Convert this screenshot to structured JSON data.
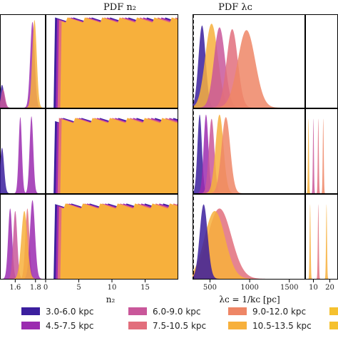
{
  "chart_data": {
    "type": "area",
    "title": "",
    "colors": {
      "3.0-6.0 kpc": "#3b1f9e",
      "4.5-7.5 kpc": "#9b2bb0",
      "6.0-9.0 kpc": "#c9579a",
      "7.5-10.5 kpc": "#e26e7c",
      "9.0-12.0 kpc": "#ee8666",
      "10.5-13.5 kpc": "#f7b03c",
      "12.0-15.0 kpc": "#f5c12f"
    },
    "legend": {
      "placement": "bottom",
      "entries": [
        "3.0-6.0 kpc",
        "4.5-7.5 kpc",
        "6.0-9.0 kpc",
        "7.5-10.5 kpc",
        "9.0-12.0 kpc",
        "10.5-13.5 kpc"
      ]
    },
    "panels": [
      {
        "id": "col1",
        "title": "",
        "xlabel": "",
        "xlim": [
          1.45,
          1.9
        ],
        "xticks": [
          1.6,
          1.8
        ],
        "xticklabels": [
          "1.6",
          "1.8"
        ],
        "rows": [
          {
            "peaks": [
              {
                "series": "4.5-7.5 kpc",
                "center": 1.77,
                "width": 0.022,
                "height": 0.94
              },
              {
                "series": "10.5-13.5 kpc",
                "center": 1.79,
                "width": 0.022,
                "height": 0.96
              },
              {
                "series": "3.0-6.0 kpc",
                "center": 1.47,
                "width": 0.02,
                "height": 0.25
              },
              {
                "series": "6.0-9.0 kpc",
                "center": 1.48,
                "width": 0.02,
                "height": 0.2
              }
            ]
          },
          {
            "peaks": [
              {
                "series": "4.5-7.5 kpc",
                "center": 1.65,
                "width": 0.016,
                "height": 0.92
              },
              {
                "series": "4.5-7.5 kpc",
                "center": 1.76,
                "width": 0.018,
                "height": 0.93
              },
              {
                "series": "3.0-6.0 kpc",
                "center": 1.47,
                "width": 0.02,
                "height": 0.55
              }
            ]
          },
          {
            "peaks": [
              {
                "series": "4.5-7.5 kpc",
                "center": 1.55,
                "width": 0.02,
                "height": 0.85
              },
              {
                "series": "6.0-9.0 kpc",
                "center": 1.6,
                "width": 0.02,
                "height": 0.82
              },
              {
                "series": "7.5-10.5 kpc",
                "center": 1.72,
                "width": 0.02,
                "height": 0.85
              },
              {
                "series": "4.5-7.5 kpc",
                "center": 1.77,
                "width": 0.025,
                "height": 0.95
              },
              {
                "series": "10.5-13.5 kpc",
                "center": 1.69,
                "width": 0.03,
                "height": 0.82
              }
            ]
          }
        ]
      },
      {
        "id": "col2",
        "title": "PDF  n₂",
        "xlabel": "n₂",
        "xlim": [
          0,
          20
        ],
        "xticks": [
          0,
          5,
          10,
          15
        ],
        "xticklabels": [
          "0",
          "5",
          "10",
          "15"
        ],
        "plateau_start": [
          {
            "series": "3.0-6.0 kpc",
            "x": 1.2
          },
          {
            "series": "4.5-7.5 kpc",
            "x": 1.5
          },
          {
            "series": "7.5-10.5 kpc",
            "x": 1.8
          },
          {
            "series": "10.5-13.5 kpc",
            "x": 2.2
          }
        ],
        "plateau_level": [
          0.96,
          0.88,
          0.88
        ]
      },
      {
        "id": "col3",
        "title": "PDF  λᴄ",
        "xlabel": "λᴄ = 1/kᴄ [pc]",
        "xlim": [
          280,
          1700
        ],
        "xticks": [
          500,
          1000,
          1500
        ],
        "xticklabels": [
          "500",
          "1000",
          "1500"
        ],
        "vline": 280,
        "rows": [
          {
            "peaks": [
              {
                "series": "3.0-6.0 kpc",
                "center": 400,
                "width": 45,
                "height": 0.9
              },
              {
                "series": "10.5-13.5 kpc",
                "center": 520,
                "width": 80,
                "height": 0.92
              },
              {
                "series": "6.0-9.0 kpc",
                "center": 620,
                "width": 70,
                "height": 0.88
              },
              {
                "series": "7.5-10.5 kpc",
                "center": 780,
                "width": 70,
                "height": 0.86
              },
              {
                "series": "9.0-12.0 kpc",
                "center": 960,
                "width": 110,
                "height": 0.85
              }
            ]
          },
          {
            "peaks": [
              {
                "series": "3.0-6.0 kpc",
                "center": 370,
                "width": 28,
                "height": 0.95
              },
              {
                "series": "4.5-7.5 kpc",
                "center": 450,
                "width": 30,
                "height": 0.95
              },
              {
                "series": "6.0-9.0 kpc",
                "center": 520,
                "width": 35,
                "height": 0.9
              },
              {
                "series": "10.5-13.5 kpc",
                "center": 620,
                "width": 50,
                "height": 0.95
              },
              {
                "series": "9.0-12.0 kpc",
                "center": 700,
                "width": 55,
                "height": 0.92
              }
            ]
          },
          {
            "peaks": [
              {
                "series": "7.5-10.5 kpc",
                "center": 620,
                "width": 150,
                "height": 0.85
              },
              {
                "series": "10.5-13.5 kpc",
                "center": 560,
                "width": 130,
                "height": 0.82
              },
              {
                "series": "3.0-6.0 kpc",
                "center": 420,
                "width": 50,
                "height": 0.9
              }
            ]
          }
        ]
      },
      {
        "id": "col4",
        "title": "",
        "xlabel": "",
        "xlim": [
          5,
          25
        ],
        "xticks": [
          10,
          20
        ],
        "xticklabels": [
          "10",
          "20"
        ],
        "rows": [
          {
            "peaks": []
          },
          {
            "peaks": [
              {
                "series": "10.5-13.5 kpc",
                "center": 7,
                "width": 0.3,
                "height": 0.9
              },
              {
                "series": "6.0-9.0 kpc",
                "center": 10,
                "width": 0.3,
                "height": 0.9
              },
              {
                "series": "7.5-10.5 kpc",
                "center": 13,
                "width": 0.3,
                "height": 0.9
              },
              {
                "series": "9.0-12.0 kpc",
                "center": 16,
                "width": 0.3,
                "height": 0.9
              }
            ]
          },
          {
            "peaks": [
              {
                "series": "10.5-13.5 kpc",
                "center": 8,
                "width": 0.3,
                "height": 0.9
              },
              {
                "series": "7.5-10.5 kpc",
                "center": 13,
                "width": 0.3,
                "height": 0.9
              },
              {
                "series": "10.5-13.5 kpc",
                "center": 18,
                "width": 0.3,
                "height": 0.9
              }
            ]
          }
        ]
      }
    ]
  }
}
